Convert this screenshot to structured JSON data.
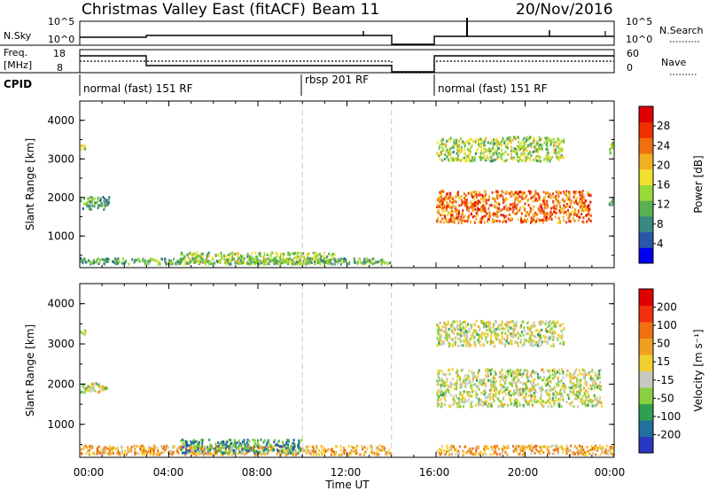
{
  "header": {
    "station": "Christmas Valley East (fitACF)",
    "beam": "Beam 11",
    "date": "20/Nov/2016"
  },
  "time_axis": {
    "ticks": [
      "00:00",
      "04:00",
      "08:00",
      "12:00",
      "16:00",
      "20:00",
      "00:00"
    ],
    "label": "Time UT",
    "range_hours": [
      0,
      24
    ]
  },
  "strips": {
    "nsky": {
      "label": "N.Sky",
      "ticks": [
        "10^5",
        "10^0"
      ]
    },
    "nsearch": {
      "label": "N.Search",
      "ticks": [
        "10^5",
        "10^0"
      ]
    },
    "freq": {
      "label_line1": "Freq.",
      "label_line2": "[MHz]",
      "ticks": [
        "18",
        "8"
      ]
    },
    "nave": {
      "label": "Nave",
      "ticks": [
        "60",
        "0"
      ]
    },
    "cpid": {
      "label": "CPID",
      "modes": [
        {
          "text": "normal (fast) 151 RF",
          "start_hour": 0
        },
        {
          "text": "rbsp 201 RF",
          "start_hour": 10
        },
        {
          "text": "normal (fast) 151 RF",
          "start_hour": 16
        }
      ]
    }
  },
  "chart_data": [
    {
      "type": "heatmap",
      "parameter": "Power",
      "ylabel": "Slant Range [km]",
      "yticks": [
        "1000",
        "2000",
        "3000",
        "4000"
      ],
      "ylim": [
        180,
        4500
      ],
      "xlim_hours": [
        0,
        24
      ],
      "data_gap_hours": [
        14,
        16
      ],
      "colorbar": {
        "label": "Power [dB]",
        "ticks": [
          "4",
          "8",
          "12",
          "16",
          "20",
          "24",
          "28"
        ],
        "range": [
          0,
          32
        ],
        "colors": [
          "#0000f0",
          "#2858a8",
          "#3a8880",
          "#58b050",
          "#98d838",
          "#f0e030",
          "#f0b020",
          "#f07010",
          "#f03000",
          "#e00000"
        ]
      },
      "echo_regions": [
        {
          "hours": [
            0.0,
            0.3
          ],
          "km": [
            3200,
            3400
          ],
          "level": 0.5
        },
        {
          "hours": [
            0.0,
            1.4
          ],
          "km": [
            1650,
            2050
          ],
          "level": 0.3
        },
        {
          "hours": [
            0.0,
            14.0
          ],
          "km": [
            230,
            450
          ],
          "level": 0.35
        },
        {
          "hours": [
            4.5,
            11.5
          ],
          "km": [
            230,
            600
          ],
          "level": 0.45
        },
        {
          "hours": [
            16.0,
            21.8
          ],
          "km": [
            2900,
            3600
          ],
          "level": 0.45
        },
        {
          "hours": [
            16.0,
            23.0
          ],
          "km": [
            1300,
            2200
          ],
          "level": 0.75
        },
        {
          "hours": [
            23.7,
            24.0
          ],
          "km": [
            1700,
            2000
          ],
          "level": 0.4
        },
        {
          "hours": [
            23.7,
            24.0
          ],
          "km": [
            3100,
            3450
          ],
          "level": 0.5
        }
      ]
    },
    {
      "type": "heatmap",
      "parameter": "Velocity",
      "ylabel": "Slant Range [km]",
      "yticks": [
        "1000",
        "2000",
        "3000",
        "4000"
      ],
      "ylim": [
        180,
        4500
      ],
      "xlim_hours": [
        0,
        24
      ],
      "data_gap_hours": [
        14,
        16
      ],
      "colorbar": {
        "label": "Velocity [m s⁻¹]",
        "ticks": [
          "200",
          "100",
          "50",
          "15",
          "-15",
          "-50",
          "-100",
          "-200"
        ],
        "colors": [
          "#2838c0",
          "#2070a0",
          "#30a050",
          "#88d040",
          "#c8c8c0",
          "#f0d030",
          "#f0a020",
          "#f07010",
          "#f03010",
          "#e00000"
        ]
      },
      "echo_regions": [
        {
          "hours": [
            0.0,
            0.3
          ],
          "km": [
            3200,
            3400
          ],
          "level": 0.45
        },
        {
          "hours": [
            0.0,
            1.3
          ],
          "km": [
            1750,
            2050
          ],
          "level": 0.45
        },
        {
          "hours": [
            0.0,
            14.0
          ],
          "km": [
            200,
            500
          ],
          "level": 0.62
        },
        {
          "hours": [
            4.5,
            10.0
          ],
          "km": [
            250,
            650
          ],
          "level": 0.25
        },
        {
          "hours": [
            16.0,
            21.8
          ],
          "km": [
            2900,
            3600
          ],
          "level": 0.45
        },
        {
          "hours": [
            16.0,
            23.5
          ],
          "km": [
            1400,
            2400
          ],
          "level": 0.45
        },
        {
          "hours": [
            16.0,
            24.0
          ],
          "km": [
            200,
            500
          ],
          "level": 0.62
        }
      ]
    }
  ]
}
